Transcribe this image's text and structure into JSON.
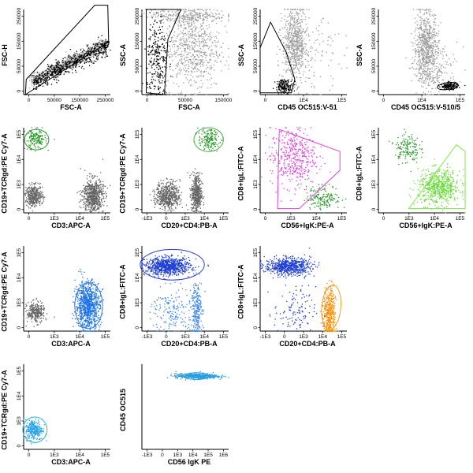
{
  "chart_data": [
    {
      "id": "p1",
      "type": "scatter",
      "xlabel": "FSC-A",
      "ylabel": "FSC-H",
      "xticks": [
        "0",
        "50000",
        "150000",
        "250000"
      ],
      "yticks": [
        "0",
        "50000",
        "150000",
        "250000"
      ],
      "series": [
        {
          "color": "#9e9e9e"
        },
        {
          "color": "#000000"
        }
      ],
      "gates": [
        {
          "color": "#000000"
        }
      ]
    },
    {
      "id": "p2",
      "type": "scatter",
      "xlabel": "FSC-A",
      "ylabel": "SSC-A",
      "xticks": [
        "0",
        "50000",
        "150000"
      ],
      "yticks": [
        "0",
        "50000",
        "150000",
        "250000"
      ],
      "series": [
        {
          "color": "#9e9e9e"
        },
        {
          "color": "#000000"
        }
      ],
      "gates": [
        {
          "color": "#000000"
        }
      ]
    },
    {
      "id": "p3",
      "type": "scatter",
      "xlabel": "CD45 OC515:V-51",
      "ylabel": "SSC-A",
      "xticks": [
        "0",
        "1E4",
        "1E5"
      ],
      "yticks": [
        "0",
        "50000",
        "150000",
        "250000"
      ],
      "series": [
        {
          "color": "#9e9e9e"
        },
        {
          "color": "#000000"
        }
      ],
      "gates": [
        {
          "color": "#000000"
        }
      ]
    },
    {
      "id": "p4",
      "type": "scatter",
      "xlabel": "CD45 OC515:V-510/5",
      "ylabel": "SSC-A",
      "xticks": [
        "0",
        "1E4",
        "1E5"
      ],
      "yticks": [
        "0",
        "50000",
        "150000",
        "250000"
      ],
      "series": [
        {
          "color": "#9e9e9e"
        },
        {
          "color": "#000000"
        }
      ],
      "gates": [
        {
          "color": "#000000"
        }
      ]
    },
    {
      "id": "p5",
      "type": "scatter",
      "xlabel": "CD3:APC-A",
      "ylabel": "CD19+TCRgd:PE Cy7-A",
      "xticks": [
        "0",
        "1E3",
        "1E4",
        "1E5"
      ],
      "yticks": [
        "0",
        "1E3",
        "1E4",
        "1E5"
      ],
      "series": [
        {
          "color": "#2e9a2e"
        },
        {
          "color": "#666666"
        }
      ],
      "gates": [
        {
          "color": "#2e9a2e"
        }
      ]
    },
    {
      "id": "p6",
      "type": "scatter",
      "xlabel": "CD20+CD4:PB-A",
      "ylabel": "CD19+TCRgd:PE Cy7-A",
      "xticks": [
        "-1E3",
        "0",
        "1E3",
        "1E4",
        "1E5"
      ],
      "yticks": [
        "0",
        "1E3",
        "1E4",
        "1E5"
      ],
      "series": [
        {
          "color": "#2e9a2e"
        },
        {
          "color": "#666666"
        }
      ],
      "gates": [
        {
          "color": "#4caf50"
        }
      ]
    },
    {
      "id": "p7",
      "type": "scatter",
      "xlabel": "CD56+IgK:PE-A",
      "ylabel": "CD8+IgL:FITC-A",
      "xticks": [
        "0",
        "1E3",
        "1E4",
        "1E5"
      ],
      "yticks": [
        "0",
        "1E3",
        "1E4",
        "1E5"
      ],
      "series": [
        {
          "color": "#e040e0"
        },
        {
          "color": "#2e9a2e"
        }
      ],
      "gates": [
        {
          "color": "#e040e0"
        }
      ]
    },
    {
      "id": "p8",
      "type": "scatter",
      "xlabel": "CD56+IgK:PE-A",
      "ylabel": "CD8+IgL:FITC-A",
      "xticks": [
        "0",
        "1E3",
        "1E4",
        "1E5"
      ],
      "yticks": [
        "0",
        "1E3",
        "1E4",
        "1E5"
      ],
      "series": [
        {
          "color": "#2e9a2e"
        },
        {
          "color": "#66dd33"
        }
      ],
      "gates": [
        {
          "color": "#7ee84a"
        }
      ]
    },
    {
      "id": "p9",
      "type": "scatter",
      "xlabel": "CD3:APC-A",
      "ylabel": "CD19+TCRgd:PE Cy7-A",
      "xticks": [
        "0",
        "1E3",
        "1E4",
        "1E5"
      ],
      "yticks": [
        "0",
        "1E3",
        "1E4",
        "1E5"
      ],
      "series": [
        {
          "color": "#666666"
        },
        {
          "color": "#1e73e8"
        }
      ],
      "gates": [
        {
          "color": "#3a7bd5"
        }
      ]
    },
    {
      "id": "p10",
      "type": "scatter",
      "xlabel": "CD20+CD4:PB-A",
      "ylabel": "CD8+IgL:FITC-A",
      "xticks": [
        "-1E3",
        "0",
        "1E3",
        "1E4",
        "1E5"
      ],
      "yticks": [
        "0",
        "1E3",
        "1E4",
        "1E5"
      ],
      "series": [
        {
          "color": "#1f3fd6"
        },
        {
          "color": "#3f86f0"
        }
      ],
      "gates": [
        {
          "color": "#2a3fd0"
        }
      ]
    },
    {
      "id": "p11",
      "type": "scatter",
      "xlabel": "CD20+CD4:PB-A",
      "ylabel": "CD8+IgL:FITC-A",
      "xticks": [
        "-1E3",
        "0",
        "1E3",
        "1E4",
        "1E5"
      ],
      "yticks": [
        "0",
        "1E3",
        "1E4",
        "1E5"
      ],
      "series": [
        {
          "color": "#1f3fd6"
        },
        {
          "color": "#ff8c00"
        }
      ],
      "gates": [
        {
          "color": "#f0a020"
        }
      ]
    },
    {
      "id": "p12",
      "type": "scatter",
      "xlabel": "CD3:APC-A",
      "ylabel": "CD19+TCRgd:PE Cy7-A",
      "xticks": [
        "0",
        "1E3",
        "1E4",
        "1E5"
      ],
      "yticks": [
        "0",
        "1E3",
        "1E4",
        "1E5"
      ],
      "series": [
        {
          "color": "#2aa3e8"
        }
      ],
      "gates": [
        {
          "color": "#35b5c0"
        }
      ]
    },
    {
      "id": "p13",
      "type": "scatter",
      "xlabel": "CD56 IgK PE",
      "ylabel": "CD45 OC515",
      "xticks": [
        "-1E3",
        "0",
        "1E3",
        "1E4",
        "1E5",
        "1E6"
      ],
      "yticks": [],
      "series": [
        {
          "color": "#2a9fe0"
        }
      ],
      "gates": [
        {
          "color": "#2a9fe0"
        }
      ]
    }
  ]
}
